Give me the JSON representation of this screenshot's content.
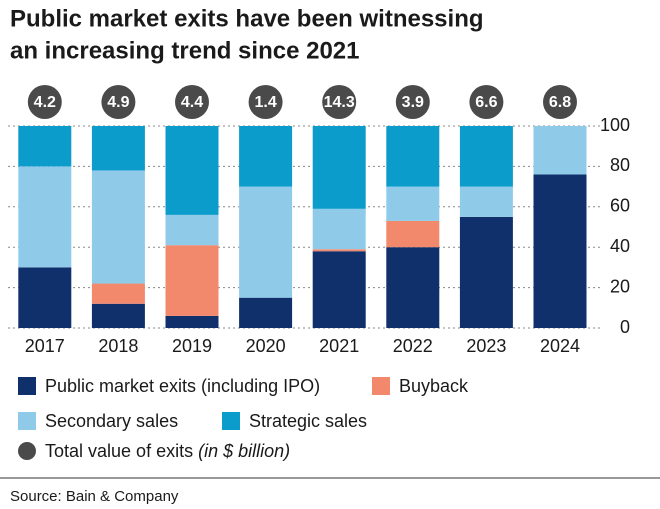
{
  "chart_data": {
    "type": "stacked_bar",
    "title": [
      "Public market exits have been witnessing",
      "an increasing trend since 2021"
    ],
    "categories": [
      "2017",
      "2018",
      "2019",
      "2020",
      "2021",
      "2022",
      "2023",
      "2024"
    ],
    "series": [
      {
        "name": "Public market exits (including IPO)",
        "color": "#10306b",
        "values": [
          30,
          12,
          6,
          15,
          38,
          40,
          55,
          76
        ]
      },
      {
        "name": "Buyback",
        "color": "#f2896c",
        "values": [
          0,
          10,
          35,
          0,
          1,
          13,
          0,
          0
        ]
      },
      {
        "name": "Secondary sales",
        "color": "#8fcbe8",
        "values": [
          50,
          56,
          15,
          55,
          20,
          17,
          15,
          24
        ]
      },
      {
        "name": "Strategic sales",
        "color": "#0b9ccb",
        "values": [
          20,
          22,
          44,
          30,
          41,
          30,
          30,
          0
        ]
      }
    ],
    "totals": {
      "name": "Total value of exits",
      "unit": "(in $ billion)",
      "color": "#4a4a4a",
      "values": [
        4.2,
        4.9,
        4.4,
        1.4,
        14.3,
        3.9,
        6.6,
        6.8
      ]
    },
    "ylim": [
      0,
      100
    ],
    "yticks": [
      0,
      20,
      40,
      60,
      80,
      100
    ],
    "grid": true,
    "source": "Source: Bain & Company"
  }
}
